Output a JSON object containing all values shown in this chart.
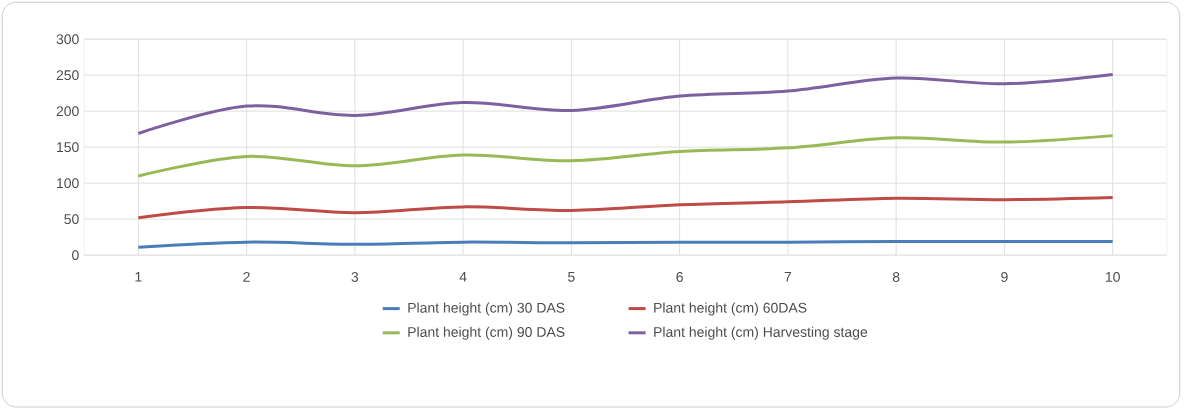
{
  "chart_data": {
    "type": "line",
    "categories": [
      "1",
      "2",
      "3",
      "4",
      "5",
      "6",
      "7",
      "8",
      "9",
      "10"
    ],
    "series": [
      {
        "name": "Plant height (cm)  30 DAS",
        "color": "#4a7ebb",
        "values": [
          11,
          18,
          15,
          18,
          17,
          18,
          18,
          19,
          19,
          19
        ]
      },
      {
        "name": "Plant height (cm)  60DAS",
        "color": "#be4b48",
        "values": [
          52,
          66,
          59,
          67,
          62,
          70,
          74,
          79,
          77,
          80
        ]
      },
      {
        "name": "Plant height (cm)  90 DAS",
        "color": "#98b954",
        "values": [
          110,
          137,
          124,
          139,
          131,
          144,
          149,
          163,
          157,
          166
        ]
      },
      {
        "name": "Plant height (cm)  Harvesting stage",
        "color": "#7d60a0",
        "values": [
          169,
          207,
          194,
          212,
          201,
          221,
          228,
          246,
          238,
          251
        ]
      }
    ],
    "ylim": [
      0,
      300
    ],
    "yticks": [
      0,
      50,
      100,
      150,
      200,
      250,
      300
    ],
    "grid": true,
    "legend": "bottom",
    "marker": "none",
    "line_style": "solid"
  }
}
